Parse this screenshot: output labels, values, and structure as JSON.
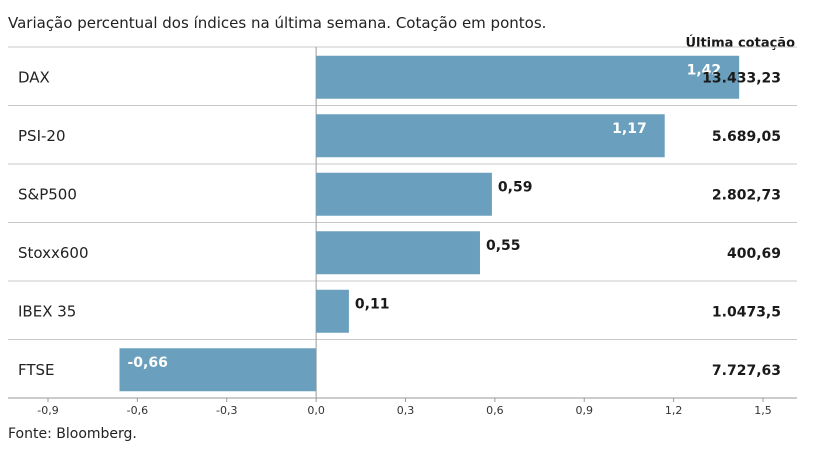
{
  "subtitle": "Variação percentual dos índices na última semana. Cotação em pontos.",
  "footer": "Fonte: Bloomberg.",
  "chart_data": {
    "type": "bar",
    "orientation": "horizontal",
    "categories": [
      "DAX",
      "PSI-20",
      "S&P500",
      "Stoxx600",
      "IBEX 35",
      "FTSE"
    ],
    "values": [
      1.42,
      1.17,
      0.59,
      0.55,
      0.11,
      -0.66
    ],
    "value_labels": [
      "1,42",
      "1,17",
      "0,59",
      "0,55",
      "0,11",
      "-0,66"
    ],
    "extra_column": {
      "header": "Última cotação",
      "values": [
        "13.433,23",
        "5.689,05",
        "2.802,73",
        "400,69",
        "1.0473,5",
        "7.727,63"
      ]
    },
    "xlim": [
      -0.9,
      1.5
    ],
    "xticks": [
      -0.9,
      -0.6,
      -0.3,
      0.0,
      0.3,
      0.6,
      0.9,
      1.2,
      1.5
    ],
    "xtick_labels": [
      "-0,9",
      "-0,6",
      "-0,3",
      "0,0",
      "0,3",
      "0,6",
      "0,9",
      "1,2",
      "1,5"
    ],
    "bar_color": "#6a9fbd",
    "grid": true
  }
}
